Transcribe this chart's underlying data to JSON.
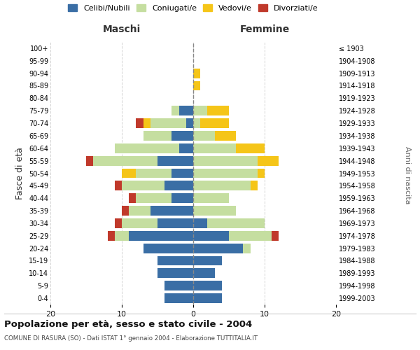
{
  "age_groups": [
    "0-4",
    "5-9",
    "10-14",
    "15-19",
    "20-24",
    "25-29",
    "30-34",
    "35-39",
    "40-44",
    "45-49",
    "50-54",
    "55-59",
    "60-64",
    "65-69",
    "70-74",
    "75-79",
    "80-84",
    "85-89",
    "90-94",
    "95-99",
    "100+"
  ],
  "birth_years": [
    "1999-2003",
    "1994-1998",
    "1989-1993",
    "1984-1988",
    "1979-1983",
    "1974-1978",
    "1969-1973",
    "1964-1968",
    "1959-1963",
    "1954-1958",
    "1949-1953",
    "1944-1948",
    "1939-1943",
    "1934-1938",
    "1929-1933",
    "1924-1928",
    "1919-1923",
    "1914-1918",
    "1909-1913",
    "1904-1908",
    "≤ 1903"
  ],
  "maschi": {
    "celibi": [
      4,
      4,
      5,
      5,
      7,
      9,
      5,
      6,
      3,
      4,
      3,
      5,
      2,
      3,
      1,
      2,
      0,
      0,
      0,
      0,
      0
    ],
    "coniugati": [
      0,
      0,
      0,
      0,
      0,
      2,
      5,
      3,
      5,
      6,
      5,
      9,
      9,
      4,
      5,
      1,
      0,
      0,
      0,
      0,
      0
    ],
    "vedovi": [
      0,
      0,
      0,
      0,
      0,
      0,
      0,
      0,
      0,
      0,
      2,
      0,
      0,
      0,
      1,
      0,
      0,
      0,
      0,
      0,
      0
    ],
    "divorziati": [
      0,
      0,
      0,
      0,
      0,
      1,
      1,
      1,
      1,
      1,
      0,
      1,
      0,
      0,
      1,
      0,
      0,
      0,
      0,
      0,
      0
    ]
  },
  "femmine": {
    "nubili": [
      4,
      4,
      3,
      4,
      7,
      5,
      2,
      0,
      0,
      0,
      0,
      0,
      0,
      0,
      0,
      0,
      0,
      0,
      0,
      0,
      0
    ],
    "coniugate": [
      0,
      0,
      0,
      0,
      1,
      6,
      8,
      6,
      5,
      8,
      9,
      9,
      6,
      3,
      1,
      2,
      0,
      0,
      0,
      0,
      0
    ],
    "vedove": [
      0,
      0,
      0,
      0,
      0,
      0,
      0,
      0,
      0,
      1,
      1,
      3,
      4,
      3,
      4,
      3,
      0,
      1,
      1,
      0,
      0
    ],
    "divorziate": [
      0,
      0,
      0,
      0,
      0,
      1,
      0,
      0,
      0,
      0,
      0,
      0,
      0,
      0,
      0,
      0,
      0,
      0,
      0,
      0,
      0
    ]
  },
  "colors": {
    "celibi_nubili": "#3a6ea5",
    "coniugati": "#c5dea0",
    "vedovi": "#f5c518",
    "divorziati": "#c0392b"
  },
  "xlim": 20,
  "title": "Popolazione per età, sesso e stato civile - 2004",
  "subtitle": "COMUNE DI RASURA (SO) - Dati ISTAT 1° gennaio 2004 - Elaborazione TUTTITALIA.IT",
  "ylabel_left": "Fasce di età",
  "ylabel_right": "Anni di nascita",
  "xlabel_left": "Maschi",
  "xlabel_right": "Femmine"
}
